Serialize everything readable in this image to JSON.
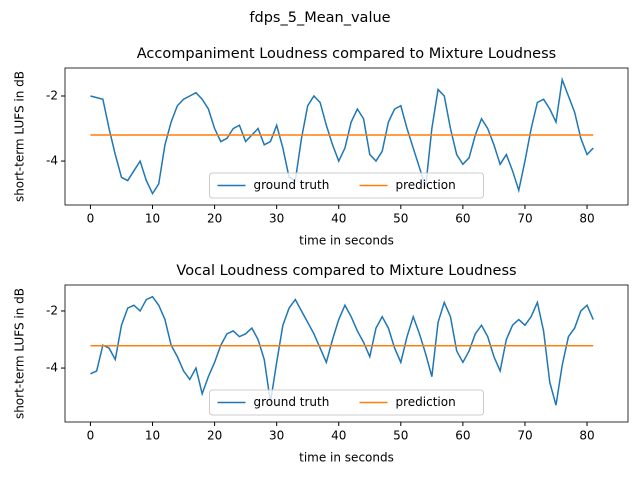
{
  "title": "fdps_5_Mean_value",
  "chart_data": [
    {
      "type": "line",
      "title": "Accompaniment Loudness compared to Mixture Loudness",
      "xlabel": "time in seconds",
      "ylabel": "short-term LUFS in dB",
      "xlim": [
        -4.1,
        86.6
      ],
      "ylim": [
        -5.35,
        -1.14
      ],
      "xticks": [
        0,
        10,
        20,
        30,
        40,
        50,
        60,
        70,
        80
      ],
      "yticks": [
        -4,
        -2
      ],
      "legend": "lower center",
      "series": [
        {
          "name": "ground truth",
          "color": "#1f77b4",
          "x": [
            0,
            1,
            2,
            3,
            4,
            5,
            6,
            7,
            8,
            9,
            10,
            11,
            12,
            13,
            14,
            15,
            16,
            17,
            18,
            19,
            20,
            21,
            22,
            23,
            24,
            25,
            26,
            27,
            28,
            29,
            30,
            31,
            32,
            33,
            34,
            35,
            36,
            37,
            38,
            39,
            40,
            41,
            42,
            43,
            44,
            45,
            46,
            47,
            48,
            49,
            50,
            51,
            52,
            53,
            54,
            55,
            56,
            57,
            58,
            59,
            60,
            61,
            62,
            63,
            64,
            65,
            66,
            67,
            68,
            69,
            70,
            71,
            72,
            73,
            74,
            75,
            76,
            77,
            78,
            79,
            80,
            81
          ],
          "values": [
            -2.0,
            -2.05,
            -2.1,
            -3.0,
            -3.8,
            -4.5,
            -4.6,
            -4.3,
            -4.0,
            -4.6,
            -5.0,
            -4.7,
            -3.5,
            -2.8,
            -2.3,
            -2.1,
            -2.0,
            -1.9,
            -2.1,
            -2.4,
            -3.0,
            -3.4,
            -3.3,
            -3.0,
            -2.9,
            -3.4,
            -3.2,
            -3.0,
            -3.5,
            -3.4,
            -2.9,
            -3.6,
            -4.5,
            -4.6,
            -3.3,
            -2.3,
            -2.0,
            -2.2,
            -2.9,
            -3.5,
            -4.0,
            -3.6,
            -2.8,
            -2.4,
            -2.7,
            -3.8,
            -4.0,
            -3.7,
            -2.8,
            -2.4,
            -2.3,
            -3.0,
            -3.6,
            -4.2,
            -4.8,
            -3.0,
            -1.8,
            -2.0,
            -3.0,
            -3.8,
            -4.1,
            -3.9,
            -3.2,
            -2.7,
            -3.0,
            -3.5,
            -4.1,
            -3.8,
            -4.3,
            -4.9,
            -4.0,
            -3.0,
            -2.2,
            -2.1,
            -2.4,
            -2.8,
            -1.5,
            -2.0,
            -2.5,
            -3.3,
            -3.8,
            -3.6
          ]
        },
        {
          "name": "prediction",
          "color": "#ff7f0e",
          "x": [
            0,
            81
          ],
          "values": [
            -3.2,
            -3.2
          ]
        }
      ]
    },
    {
      "type": "line",
      "title": "Vocal Loudness compared to Mixture Loudness",
      "xlabel": "time in seconds",
      "ylabel": "short-term LUFS in dB",
      "xlim": [
        -4.1,
        86.6
      ],
      "ylim": [
        -5.89,
        -1.09
      ],
      "xticks": [
        0,
        10,
        20,
        30,
        40,
        50,
        60,
        70,
        80
      ],
      "yticks": [
        -4,
        -2
      ],
      "legend": "lower center",
      "series": [
        {
          "name": "ground truth",
          "color": "#1f77b4",
          "x": [
            0,
            1,
            2,
            3,
            4,
            5,
            6,
            7,
            8,
            9,
            10,
            11,
            12,
            13,
            14,
            15,
            16,
            17,
            18,
            19,
            20,
            21,
            22,
            23,
            24,
            25,
            26,
            27,
            28,
            29,
            30,
            31,
            32,
            33,
            34,
            35,
            36,
            37,
            38,
            39,
            40,
            41,
            42,
            43,
            44,
            45,
            46,
            47,
            48,
            49,
            50,
            51,
            52,
            53,
            54,
            55,
            56,
            57,
            58,
            59,
            60,
            61,
            62,
            63,
            64,
            65,
            66,
            67,
            68,
            69,
            70,
            71,
            72,
            73,
            74,
            75,
            76,
            77,
            78,
            79,
            80,
            81
          ],
          "values": [
            -4.2,
            -4.1,
            -3.2,
            -3.3,
            -3.7,
            -2.5,
            -1.9,
            -1.8,
            -2.0,
            -1.6,
            -1.5,
            -1.8,
            -2.3,
            -3.2,
            -3.6,
            -4.1,
            -4.4,
            -4.0,
            -4.9,
            -4.3,
            -3.8,
            -3.2,
            -2.8,
            -2.7,
            -2.9,
            -2.8,
            -2.6,
            -3.0,
            -3.7,
            -5.2,
            -3.8,
            -2.5,
            -1.9,
            -1.6,
            -2.0,
            -2.4,
            -2.8,
            -3.3,
            -3.8,
            -3.0,
            -2.3,
            -1.8,
            -2.2,
            -2.7,
            -3.1,
            -3.6,
            -2.6,
            -2.2,
            -2.6,
            -3.3,
            -3.8,
            -2.9,
            -2.2,
            -2.8,
            -3.5,
            -4.3,
            -2.4,
            -1.7,
            -2.2,
            -3.4,
            -3.8,
            -3.4,
            -2.8,
            -2.5,
            -2.9,
            -3.6,
            -4.1,
            -3.0,
            -2.5,
            -2.3,
            -2.5,
            -2.2,
            -1.7,
            -2.7,
            -4.5,
            -5.3,
            -3.9,
            -2.9,
            -2.6,
            -2.0,
            -1.8,
            -2.3
          ]
        },
        {
          "name": "prediction",
          "color": "#ff7f0e",
          "x": [
            0,
            81
          ],
          "values": [
            -3.22,
            -3.22
          ]
        }
      ]
    }
  ]
}
